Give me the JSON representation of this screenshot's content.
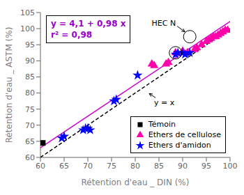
{
  "chart_data": {
    "type": "scatter",
    "xlabel": "Rétention d'eau _ DIN (%)",
    "ylabel": "Rétention d'eau _ ASTM (%)",
    "xlim": [
      60,
      100
    ],
    "ylim": [
      60,
      105
    ],
    "xticks": [
      60,
      65,
      70,
      75,
      80,
      85,
      90,
      95,
      100
    ],
    "yticks": [
      60,
      65,
      70,
      75,
      80,
      85,
      90,
      95,
      100,
      105
    ],
    "grid": false,
    "legend": "lower right",
    "series": [
      {
        "type": "line",
        "color": "#000000",
        "line_style": "dashed",
        "x": [
          60,
          100
        ],
        "values": [
          60,
          100
        ]
      },
      {
        "type": "line",
        "color": "#cc00cc",
        "line_style": "solid",
        "x": [
          60,
          100
        ],
        "values": [
          63.0,
          102.2
        ]
      },
      {
        "name": "Témoin",
        "type": "scatter",
        "marker": "square",
        "color": "#000000",
        "x": [
          60.5
        ],
        "values": [
          64.5
        ]
      },
      {
        "name": "Ethers de cellulose",
        "type": "scatter",
        "marker": "triangle",
        "color": "#ff00aa",
        "x": [
          83.5,
          84.0,
          86.5,
          87.0,
          88.5,
          90.0,
          91.0,
          92.5,
          93.0,
          94.0,
          95.0,
          95.5,
          96.0,
          96.5,
          97.0,
          97.5,
          98.0,
          98.5,
          99.0,
          99.5
        ],
        "values": [
          89.0,
          88.5,
          89.0,
          89.5,
          92.5,
          93.0,
          92.5,
          93.5,
          94.0,
          95.0,
          96.0,
          96.5,
          97.0,
          97.5,
          97.5,
          98.0,
          98.5,
          99.0,
          99.5,
          99.5
        ]
      },
      {
        "name": "Ethers d'amidon",
        "type": "scatter",
        "marker": "star",
        "color": "#0000ff",
        "x": [
          64.5,
          65.0,
          69.0,
          69.5,
          70.0,
          70.5,
          75.5,
          76.0,
          80.5,
          88.5,
          89.0,
          90.0,
          90.5,
          91.5
        ],
        "values": [
          66.0,
          66.5,
          68.5,
          69.0,
          69.0,
          68.5,
          77.5,
          78.0,
          85.5,
          92.0,
          92.5,
          92.5,
          92.0,
          92.5
        ]
      }
    ],
    "annotations": [
      {
        "text": [
          "y = 4,1 + 0,98 x",
          "r² = 0,98"
        ],
        "color": "#9900cc"
      },
      {
        "text": "HEC N",
        "x": 91.5,
        "y": 97.5,
        "circled": [
          [
            88.5,
            92.5
          ],
          [
            91.5,
            97.5
          ]
        ]
      },
      {
        "text": "y = x",
        "x": 82.5,
        "y": 80.5
      }
    ]
  }
}
